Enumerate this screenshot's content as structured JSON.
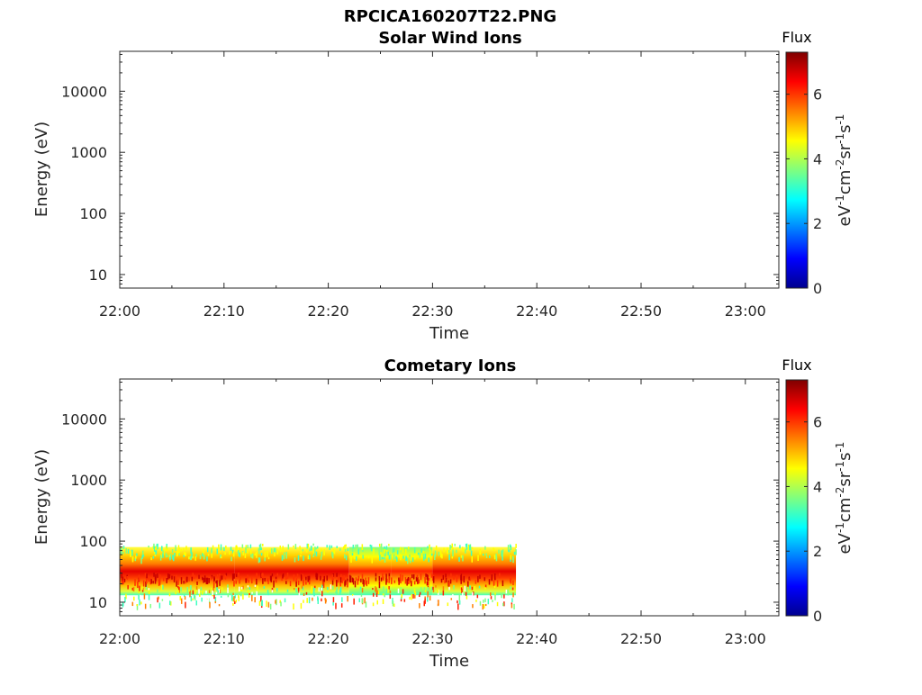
{
  "figure": {
    "filename_title": "RPCICA160207T22.PNG"
  },
  "chart_data": [
    {
      "type": "heatmap",
      "title": "Solar Wind Ions",
      "xlabel": "Time",
      "ylabel": "Energy (eV)",
      "y_scale": "log",
      "ylim": [
        6,
        45000
      ],
      "x_ticks": [
        "22:00",
        "22:10",
        "22:20",
        "22:30",
        "22:40",
        "22:50",
        "23:00"
      ],
      "y_ticks": [
        "10",
        "100",
        "1000",
        "10000"
      ],
      "colorbar": {
        "title": "Flux",
        "label": "eV⁻¹cm⁻²sr⁻¹s⁻¹",
        "ticks": [
          "0",
          "2",
          "4",
          "6"
        ],
        "range": [
          0,
          7.3
        ],
        "colormap": "jet"
      },
      "data_present": false
    },
    {
      "type": "heatmap",
      "title": "Cometary Ions",
      "xlabel": "Time",
      "ylabel": "Energy (eV)",
      "y_scale": "log",
      "ylim": [
        6,
        45000
      ],
      "x_ticks": [
        "22:00",
        "22:10",
        "22:20",
        "22:30",
        "22:40",
        "22:50",
        "23:00"
      ],
      "y_ticks": [
        "10",
        "100",
        "1000",
        "10000"
      ],
      "colorbar": {
        "title": "Flux",
        "label": "eV⁻¹cm⁻²sr⁻¹s⁻¹",
        "ticks": [
          "0",
          "2",
          "4",
          "6"
        ],
        "range": [
          0,
          7.3
        ],
        "colormap": "jet"
      },
      "data_present": true,
      "data_time_range": [
        "22:00",
        "22:38"
      ],
      "energy_band_eV": [
        13,
        80
      ],
      "peak_energy_eV": 25,
      "segments": [
        {
          "start": "22:00",
          "end": "22:11",
          "peak_flux": 6.9
        },
        {
          "start": "22:11",
          "end": "22:22",
          "peak_flux": 6.8
        },
        {
          "start": "22:22",
          "end": "22:26",
          "peak_flux": 6.4
        },
        {
          "start": "22:26",
          "end": "22:30",
          "peak_flux": 6.2
        },
        {
          "start": "22:30",
          "end": "22:38",
          "peak_flux": 6.9
        }
      ]
    }
  ]
}
